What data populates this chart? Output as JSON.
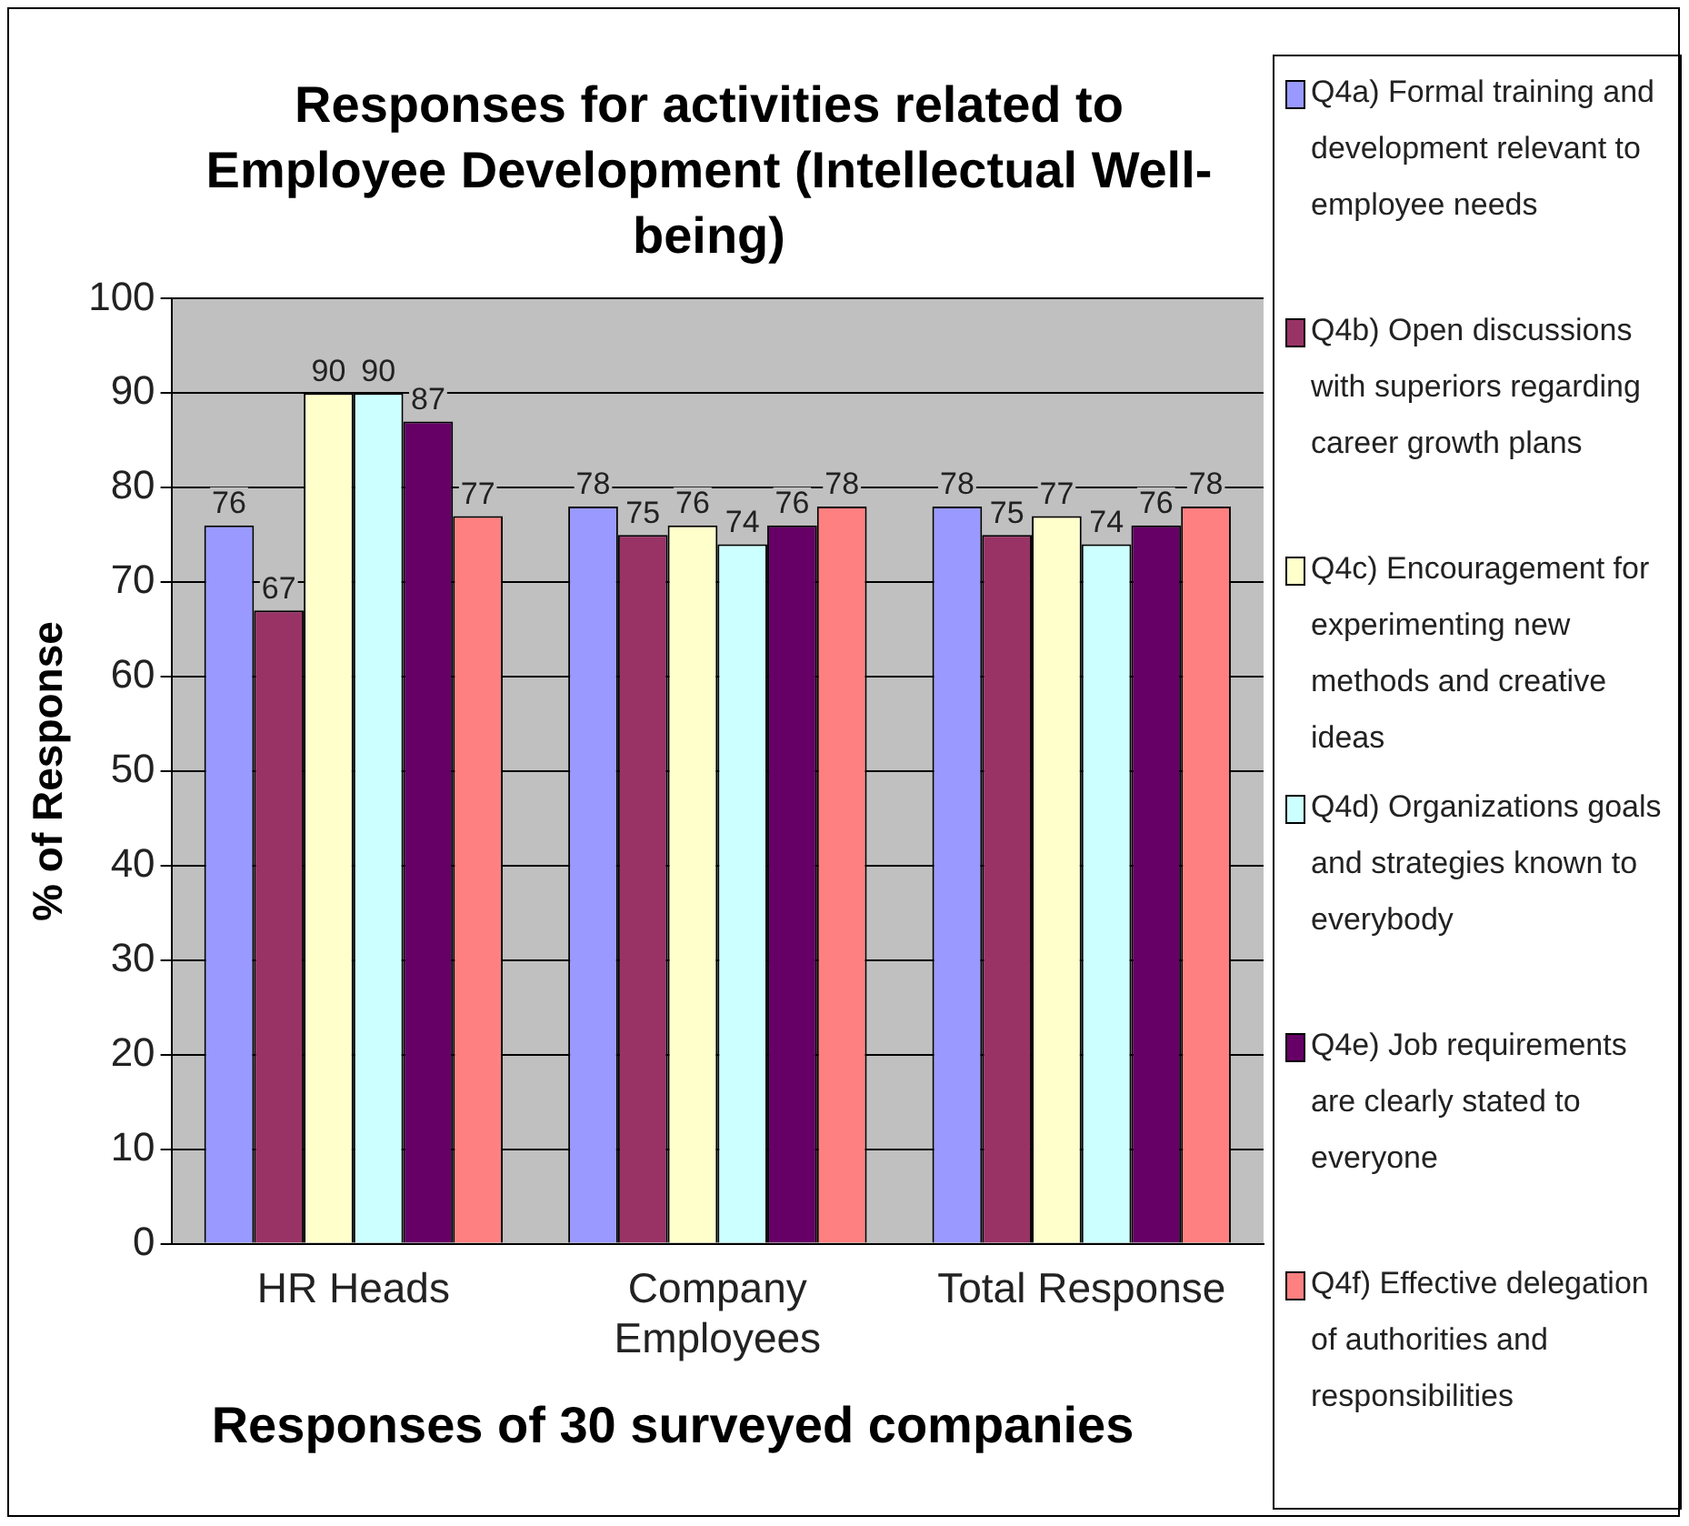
{
  "chart_data": {
    "type": "bar",
    "title": "Responses for activities related to Employee Development (Intellectual Well-being)",
    "xlabel": "Responses of 30 surveyed companies",
    "ylabel": "% of Response",
    "categories": [
      "HR Heads",
      "Company Employees",
      "Total Response"
    ],
    "series": [
      {
        "name": "Q4a) Formal training and development relevant to employee needs",
        "color": "#9999ff",
        "values": [
          76,
          78,
          78
        ]
      },
      {
        "name": "Q4b) Open discussions with superiors regarding career growth plans",
        "color": "#993366",
        "values": [
          67,
          75,
          75
        ]
      },
      {
        "name": "Q4c) Encouragement for experimenting new methods and creative ideas",
        "color": "#ffffcc",
        "values": [
          90,
          76,
          77
        ]
      },
      {
        "name": "Q4d) Organizations goals and strategies known to everybody",
        "color": "#ccffff",
        "values": [
          90,
          74,
          74
        ]
      },
      {
        "name": "Q4e) Job requirements are clearly stated to everyone",
        "color": "#660066",
        "values": [
          87,
          76,
          76
        ]
      },
      {
        "name": "Q4f) Effective delegation of authorities and responsibilities",
        "color": "#ff8080",
        "values": [
          77,
          78,
          78
        ]
      }
    ],
    "ylim": [
      0,
      100
    ],
    "yticks": [
      0,
      10,
      20,
      30,
      40,
      50,
      60,
      70,
      80,
      90,
      100
    ],
    "grid": "y",
    "legend": "right",
    "data_labels": true
  }
}
